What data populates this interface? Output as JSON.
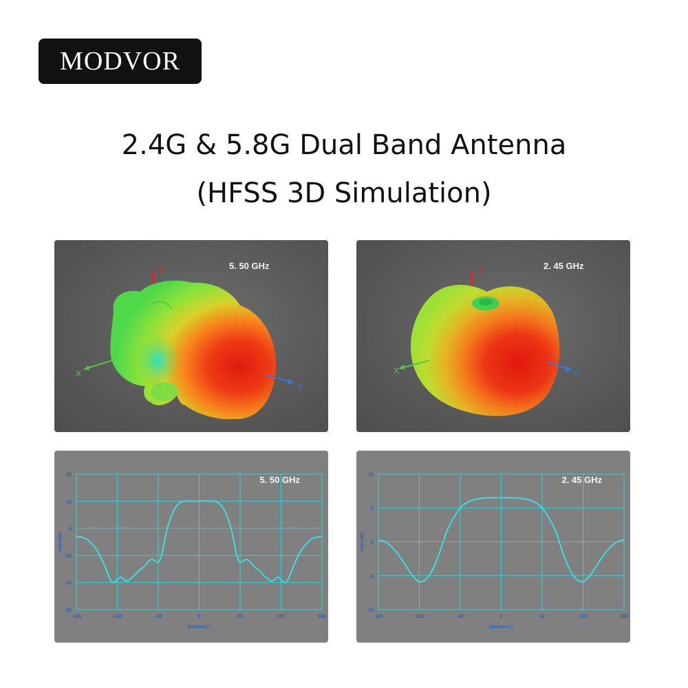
{
  "brand": {
    "name": "MODVOR"
  },
  "header": {
    "title_line1": "2.4G & 5.8G Dual Band Antenna",
    "title_line2": "(HFSS 3D Simulation)"
  },
  "panels_3d": [
    {
      "freq_label": "5. 50 GHz",
      "axis_labels": {
        "z": "Z",
        "x": "X",
        "y": "Y"
      }
    },
    {
      "freq_label": "2. 45 GHz",
      "axis_labels": {
        "z": "Z",
        "x": "X",
        "y": "Y"
      }
    }
  ],
  "colors": {
    "curve": "#33e6ec",
    "grid": "#2fd3d8",
    "plot_bg": "#808080",
    "axis_z": "#e0261e",
    "axis_x": "#5cc24a",
    "axis_y": "#3b78d6"
  },
  "chart_data": [
    {
      "type": "line",
      "title": "5. 50 GHz",
      "xlabel": "Direction (°)",
      "ylabel": "Gain (dB)",
      "xlim": [
        -180,
        180
      ],
      "ylim": [
        -30,
        20
      ],
      "xticks": [
        -180,
        -120,
        -60,
        0,
        60,
        120,
        180
      ],
      "yticks": [
        -30,
        -20,
        -10,
        0,
        10,
        20
      ],
      "grid": true,
      "series": [
        {
          "x": [
            -180,
            -165,
            -150,
            -140,
            -130,
            -125,
            -120,
            -115,
            -110,
            -105,
            -100,
            -95,
            -90,
            -85,
            -80,
            -75,
            -70,
            -65,
            -60,
            -55,
            -50,
            -45,
            -40,
            -35,
            -30,
            -25,
            -20,
            -15,
            -10,
            -5,
            0,
            5,
            10,
            15,
            20,
            25,
            30,
            35,
            40,
            45,
            50,
            55,
            60,
            65,
            70,
            75,
            80,
            85,
            90,
            95,
            100,
            105,
            110,
            115,
            120,
            125,
            130,
            140,
            150,
            165,
            180
          ],
          "y": [
            -3,
            -4,
            -8,
            -13,
            -19,
            -20,
            -19,
            -18,
            -19,
            -19.5,
            -18.5,
            -17.5,
            -16,
            -15,
            -14,
            -12.5,
            -11.5,
            -12,
            -12.5,
            -10,
            -3.5,
            1.5,
            5,
            7.5,
            9,
            9.8,
            10,
            10,
            10,
            10,
            10,
            10,
            10,
            10,
            10,
            9.8,
            9,
            7.5,
            5,
            1.5,
            -3.5,
            -10,
            -12.5,
            -12,
            -11.5,
            -12.5,
            -14,
            -15,
            -16,
            -17.5,
            -18.5,
            -19.5,
            -19,
            -18,
            -19,
            -20,
            -19,
            -13,
            -8,
            -4,
            -3
          ]
        }
      ]
    },
    {
      "type": "line",
      "title": "2. 45 GHz",
      "xlabel": "Direction (°)",
      "ylabel": "Gain (dB)",
      "xlim": [
        -180,
        180
      ],
      "ylim": [
        -10,
        10
      ],
      "xticks": [
        -180,
        -120,
        -60,
        0,
        60,
        120,
        180
      ],
      "yticks": [
        -10,
        -5,
        0,
        5,
        10
      ],
      "grid": true,
      "series": [
        {
          "x": [
            -180,
            -170,
            -160,
            -150,
            -140,
            -130,
            -120,
            -110,
            -100,
            -90,
            -80,
            -70,
            -60,
            -50,
            -40,
            -30,
            -20,
            -10,
            0,
            10,
            20,
            30,
            40,
            50,
            60,
            70,
            80,
            90,
            100,
            110,
            120,
            130,
            140,
            150,
            160,
            170,
            180
          ],
          "y": [
            0.3,
            0,
            -0.8,
            -2,
            -3.5,
            -5,
            -5.9,
            -5.5,
            -4,
            -1.5,
            1.5,
            3.5,
            5,
            5.8,
            6.2,
            6.4,
            6.5,
            6.5,
            6.5,
            6.5,
            6.5,
            6.4,
            6.2,
            5.8,
            5,
            3.5,
            1.5,
            -1.5,
            -4,
            -5.5,
            -5.9,
            -5,
            -3.5,
            -2,
            -0.8,
            0,
            0.3
          ]
        }
      ]
    }
  ]
}
